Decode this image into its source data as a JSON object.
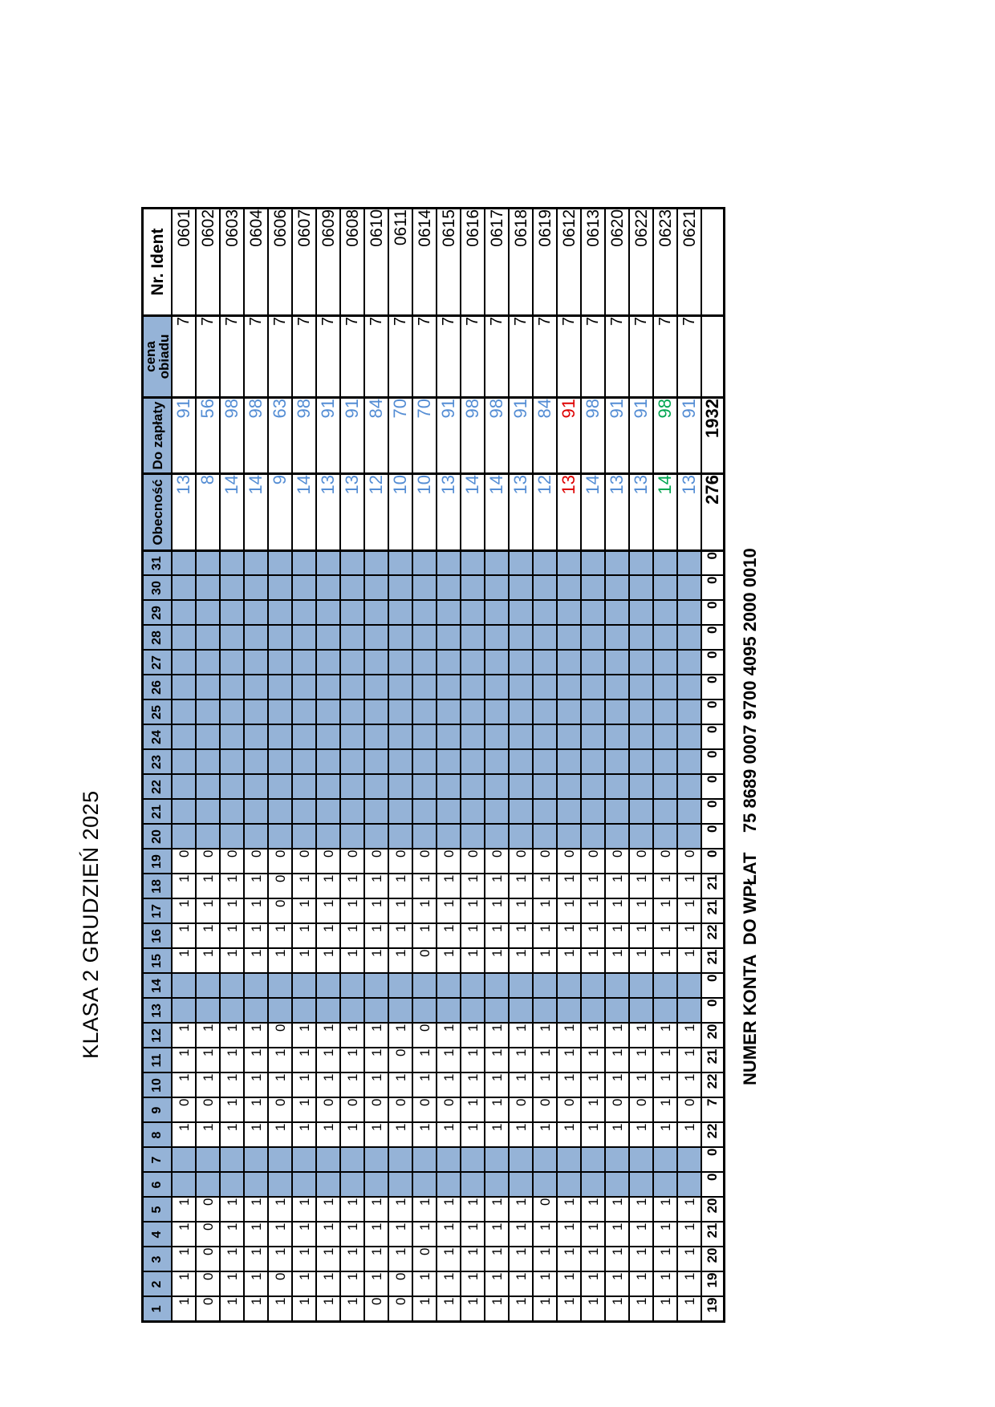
{
  "title": "KLASA 2 GRUDZIEŃ 2025",
  "account_line": "NUMER KONTA  DO WPŁAT    75 8689 0007 9700 4095 2000 0010",
  "colors": {
    "closed_fill": "#95B3D7",
    "header_fill": "#95B3D7",
    "value_blue": "#548DD4",
    "alert_red": "#DE0000",
    "ok_green": "#00A651",
    "grid_line": "#000000"
  },
  "table": {
    "day_headers": [
      "1",
      "2",
      "3",
      "4",
      "5",
      "6",
      "7",
      "8",
      "9",
      "10",
      "11",
      "12",
      "13",
      "14",
      "15",
      "16",
      "17",
      "18",
      "19",
      "20",
      "21",
      "22",
      "23",
      "24",
      "25",
      "26",
      "27",
      "28",
      "29",
      "30",
      "31"
    ],
    "summary_headers": [
      "Obecność",
      "Do zapłaty",
      "cena obiadu",
      "Nr. Ident"
    ],
    "closed_days": [
      6,
      7,
      13,
      14,
      20,
      21,
      22,
      23,
      24,
      25,
      26,
      27,
      28,
      29,
      30,
      31
    ],
    "students": [
      {
        "id": "0601",
        "days": [
          1,
          1,
          1,
          1,
          1,
          null,
          null,
          1,
          0,
          1,
          1,
          1,
          null,
          null,
          1,
          1,
          1,
          1,
          0,
          null,
          null,
          null,
          null,
          null,
          null,
          null,
          null,
          null,
          null,
          null,
          null
        ],
        "obecnosc": 13,
        "do_zaplaty": 91,
        "cena": 7,
        "color": "blue"
      },
      {
        "id": "0602",
        "days": [
          0,
          0,
          0,
          0,
          0,
          null,
          null,
          1,
          0,
          1,
          1,
          1,
          null,
          null,
          1,
          1,
          1,
          1,
          0,
          null,
          null,
          null,
          null,
          null,
          null,
          null,
          null,
          null,
          null,
          null,
          null
        ],
        "obecnosc": 8,
        "do_zaplaty": 56,
        "cena": 7,
        "color": "blue"
      },
      {
        "id": "0603",
        "days": [
          1,
          1,
          1,
          1,
          1,
          null,
          null,
          1,
          1,
          1,
          1,
          1,
          null,
          null,
          1,
          1,
          1,
          1,
          0,
          null,
          null,
          null,
          null,
          null,
          null,
          null,
          null,
          null,
          null,
          null,
          null
        ],
        "obecnosc": 14,
        "do_zaplaty": 98,
        "cena": 7,
        "color": "blue"
      },
      {
        "id": "0604",
        "days": [
          1,
          1,
          1,
          1,
          1,
          null,
          null,
          1,
          1,
          1,
          1,
          1,
          null,
          null,
          1,
          1,
          1,
          1,
          0,
          null,
          null,
          null,
          null,
          null,
          null,
          null,
          null,
          null,
          null,
          null,
          null
        ],
        "obecnosc": 14,
        "do_zaplaty": 98,
        "cena": 7,
        "color": "blue"
      },
      {
        "id": "0606",
        "days": [
          1,
          0,
          1,
          1,
          1,
          null,
          null,
          1,
          0,
          1,
          1,
          0,
          null,
          null,
          1,
          1,
          0,
          0,
          0,
          null,
          null,
          null,
          null,
          null,
          null,
          null,
          null,
          null,
          null,
          null,
          null
        ],
        "obecnosc": 9,
        "do_zaplaty": 63,
        "cena": 7,
        "color": "blue"
      },
      {
        "id": "0607",
        "days": [
          1,
          1,
          1,
          1,
          1,
          null,
          null,
          1,
          1,
          1,
          1,
          1,
          null,
          null,
          1,
          1,
          1,
          1,
          0,
          null,
          null,
          null,
          null,
          null,
          null,
          null,
          null,
          null,
          null,
          null,
          null
        ],
        "obecnosc": 14,
        "do_zaplaty": 98,
        "cena": 7,
        "color": "blue"
      },
      {
        "id": "0609",
        "days": [
          1,
          1,
          1,
          1,
          1,
          null,
          null,
          1,
          0,
          1,
          1,
          1,
          null,
          null,
          1,
          1,
          1,
          1,
          0,
          null,
          null,
          null,
          null,
          null,
          null,
          null,
          null,
          null,
          null,
          null,
          null
        ],
        "obecnosc": 13,
        "do_zaplaty": 91,
        "cena": 7,
        "color": "blue"
      },
      {
        "id": "0608",
        "days": [
          1,
          1,
          1,
          1,
          1,
          null,
          null,
          1,
          0,
          1,
          1,
          1,
          null,
          null,
          1,
          1,
          1,
          1,
          0,
          null,
          null,
          null,
          null,
          null,
          null,
          null,
          null,
          null,
          null,
          null,
          null
        ],
        "obecnosc": 13,
        "do_zaplaty": 91,
        "cena": 7,
        "color": "blue"
      },
      {
        "id": "0610",
        "days": [
          0,
          1,
          1,
          1,
          1,
          null,
          null,
          1,
          0,
          1,
          1,
          1,
          null,
          null,
          1,
          1,
          1,
          1,
          0,
          null,
          null,
          null,
          null,
          null,
          null,
          null,
          null,
          null,
          null,
          null,
          null
        ],
        "obecnosc": 12,
        "do_zaplaty": 84,
        "cena": 7,
        "color": "blue"
      },
      {
        "id": "0611",
        "days": [
          0,
          0,
          1,
          1,
          1,
          null,
          null,
          1,
          0,
          1,
          0,
          1,
          null,
          null,
          1,
          1,
          1,
          1,
          0,
          null,
          null,
          null,
          null,
          null,
          null,
          null,
          null,
          null,
          null,
          null,
          null
        ],
        "obecnosc": 10,
        "do_zaplaty": 70,
        "cena": 7,
        "color": "blue"
      },
      {
        "id": "0614",
        "days": [
          1,
          1,
          0,
          1,
          1,
          null,
          null,
          1,
          0,
          1,
          1,
          0,
          null,
          null,
          0,
          1,
          1,
          1,
          0,
          null,
          null,
          null,
          null,
          null,
          null,
          null,
          null,
          null,
          null,
          null,
          null
        ],
        "obecnosc": 10,
        "do_zaplaty": 70,
        "cena": 7,
        "color": "blue"
      },
      {
        "id": "0615",
        "days": [
          1,
          1,
          1,
          1,
          1,
          null,
          null,
          1,
          0,
          1,
          1,
          1,
          null,
          null,
          1,
          1,
          1,
          1,
          0,
          null,
          null,
          null,
          null,
          null,
          null,
          null,
          null,
          null,
          null,
          null,
          null
        ],
        "obecnosc": 13,
        "do_zaplaty": 91,
        "cena": 7,
        "color": "blue"
      },
      {
        "id": "0616",
        "days": [
          1,
          1,
          1,
          1,
          1,
          null,
          null,
          1,
          1,
          1,
          1,
          1,
          null,
          null,
          1,
          1,
          1,
          1,
          0,
          null,
          null,
          null,
          null,
          null,
          null,
          null,
          null,
          null,
          null,
          null,
          null
        ],
        "obecnosc": 14,
        "do_zaplaty": 98,
        "cena": 7,
        "color": "blue"
      },
      {
        "id": "0617",
        "days": [
          1,
          1,
          1,
          1,
          1,
          null,
          null,
          1,
          1,
          1,
          1,
          1,
          null,
          null,
          1,
          1,
          1,
          1,
          0,
          null,
          null,
          null,
          null,
          null,
          null,
          null,
          null,
          null,
          null,
          null,
          null
        ],
        "obecnosc": 14,
        "do_zaplaty": 98,
        "cena": 7,
        "color": "blue"
      },
      {
        "id": "0618",
        "days": [
          1,
          1,
          1,
          1,
          1,
          null,
          null,
          1,
          0,
          1,
          1,
          1,
          null,
          null,
          1,
          1,
          1,
          1,
          0,
          null,
          null,
          null,
          null,
          null,
          null,
          null,
          null,
          null,
          null,
          null,
          null
        ],
        "obecnosc": 13,
        "do_zaplaty": 91,
        "cena": 7,
        "color": "blue"
      },
      {
        "id": "0619",
        "days": [
          1,
          1,
          1,
          1,
          0,
          null,
          null,
          1,
          0,
          1,
          1,
          1,
          null,
          null,
          1,
          1,
          1,
          1,
          0,
          null,
          null,
          null,
          null,
          null,
          null,
          null,
          null,
          null,
          null,
          null,
          null
        ],
        "obecnosc": 12,
        "do_zaplaty": 84,
        "cena": 7,
        "color": "blue"
      },
      {
        "id": "0612",
        "days": [
          1,
          1,
          1,
          1,
          1,
          null,
          null,
          1,
          0,
          1,
          1,
          1,
          null,
          null,
          1,
          1,
          1,
          1,
          0,
          null,
          null,
          null,
          null,
          null,
          null,
          null,
          null,
          null,
          null,
          null,
          null
        ],
        "obecnosc": 13,
        "do_zaplaty": 91,
        "cena": 7,
        "color": "red"
      },
      {
        "id": "0613",
        "days": [
          1,
          1,
          1,
          1,
          1,
          null,
          null,
          1,
          1,
          1,
          1,
          1,
          null,
          null,
          1,
          1,
          1,
          1,
          0,
          null,
          null,
          null,
          null,
          null,
          null,
          null,
          null,
          null,
          null,
          null,
          null
        ],
        "obecnosc": 14,
        "do_zaplaty": 98,
        "cena": 7,
        "color": "blue"
      },
      {
        "id": "0620",
        "days": [
          1,
          1,
          1,
          1,
          1,
          null,
          null,
          1,
          0,
          1,
          1,
          1,
          null,
          null,
          1,
          1,
          1,
          1,
          0,
          null,
          null,
          null,
          null,
          null,
          null,
          null,
          null,
          null,
          null,
          null,
          null
        ],
        "obecnosc": 13,
        "do_zaplaty": 91,
        "cena": 7,
        "color": "blue"
      },
      {
        "id": "0622",
        "days": [
          1,
          1,
          1,
          1,
          1,
          null,
          null,
          1,
          0,
          1,
          1,
          1,
          null,
          null,
          1,
          1,
          1,
          1,
          0,
          null,
          null,
          null,
          null,
          null,
          null,
          null,
          null,
          null,
          null,
          null,
          null
        ],
        "obecnosc": 13,
        "do_zaplaty": 91,
        "cena": 7,
        "color": "blue"
      },
      {
        "id": "0623",
        "days": [
          1,
          1,
          1,
          1,
          1,
          null,
          null,
          1,
          1,
          1,
          1,
          1,
          null,
          null,
          1,
          1,
          1,
          1,
          0,
          null,
          null,
          null,
          null,
          null,
          null,
          null,
          null,
          null,
          null,
          null,
          null
        ],
        "obecnosc": 14,
        "do_zaplaty": 98,
        "cena": 7,
        "color": "green"
      },
      {
        "id": "0621",
        "days": [
          1,
          1,
          1,
          1,
          1,
          null,
          null,
          1,
          0,
          1,
          1,
          1,
          null,
          null,
          1,
          1,
          1,
          1,
          0,
          null,
          null,
          null,
          null,
          null,
          null,
          null,
          null,
          null,
          null,
          null,
          null
        ],
        "obecnosc": 13,
        "do_zaplaty": 91,
        "cena": 7,
        "color": "blue"
      }
    ],
    "totals": {
      "days": [
        19,
        19,
        20,
        21,
        20,
        0,
        0,
        22,
        7,
        22,
        21,
        20,
        0,
        0,
        21,
        22,
        21,
        21,
        0,
        0,
        0,
        0,
        0,
        0,
        0,
        0,
        0,
        0,
        0,
        0,
        0
      ],
      "obecnosc": 276,
      "do_zaplaty": 1932
    }
  }
}
